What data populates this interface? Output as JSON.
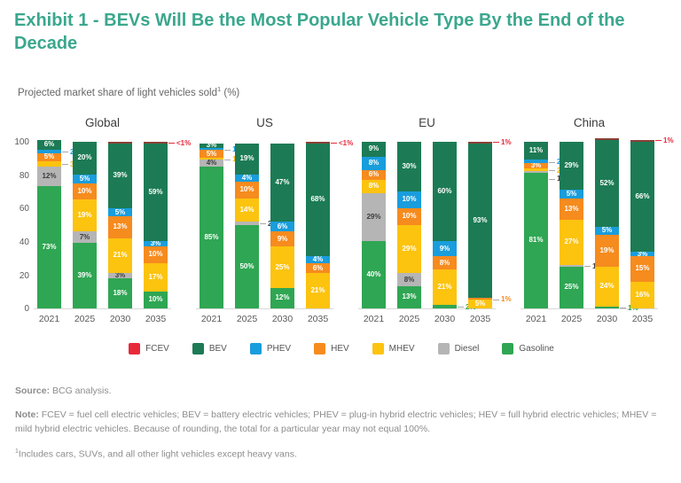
{
  "page": {
    "title": "Exhibit 1 - BEVs Will Be the Most Popular Vehicle Type By the End of the Decade",
    "subtitle_text": "Projected market share of light vehicles sold",
    "subtitle_sup": "1",
    "subtitle_suffix": " (%)"
  },
  "legend": [
    {
      "name": "FCEV",
      "color": "#e8293a",
      "callout_color": "#e8293a"
    },
    {
      "name": "BEV",
      "color": "#1c7b55",
      "callout_color": "#1c7b55"
    },
    {
      "name": "PHEV",
      "color": "#199ddc",
      "callout_color": "#199ddc"
    },
    {
      "name": "HEV",
      "color": "#f68b1e",
      "callout_color": "#f68b1e"
    },
    {
      "name": "MHEV",
      "color": "#fcc30f",
      "callout_color": "#f5b60d"
    },
    {
      "name": "Diesel",
      "color": "#b5b5b5",
      "callout_color": "#3d3d3d"
    },
    {
      "name": "Gasoline",
      "color": "#2fa653",
      "callout_color": "#2fa653"
    }
  ],
  "colors": {
    "fcev_sliver": "#8a4036",
    "diesel_inside_label": "#3d3d3d"
  },
  "chart_data": {
    "type": "bar",
    "stacked": true,
    "unit": "%",
    "ylim": [
      0,
      100
    ],
    "yticks": [
      0,
      20,
      40,
      60,
      80,
      100
    ],
    "grid": false,
    "legend_position": "bottom",
    "series_order_bottom_to_top": [
      "Gasoline",
      "Diesel",
      "MHEV",
      "HEV",
      "PHEV",
      "BEV",
      "FCEV"
    ],
    "charts": [
      {
        "title": "Global",
        "categories": [
          "2021",
          "2025",
          "2030",
          "2035"
        ],
        "bars": [
          {
            "year": "2021",
            "segments": [
              {
                "series": "Gasoline",
                "value": 73,
                "label": "73%",
                "label_pos": "inside"
              },
              {
                "series": "Diesel",
                "value": 12,
                "label": "12%",
                "label_pos": "inside"
              },
              {
                "series": "MHEV",
                "value": 3,
                "label": "3%",
                "label_pos": "right"
              },
              {
                "series": "HEV",
                "value": 5,
                "label": "5%",
                "label_pos": "inside"
              },
              {
                "series": "PHEV",
                "value": 2,
                "label": "2%",
                "label_pos": "right"
              },
              {
                "series": "BEV",
                "value": 6,
                "label": "6%",
                "label_pos": "inside"
              }
            ]
          },
          {
            "year": "2025",
            "segments": [
              {
                "series": "Gasoline",
                "value": 39,
                "label": "39%",
                "label_pos": "inside"
              },
              {
                "series": "Diesel",
                "value": 7,
                "label": "7%",
                "label_pos": "inside"
              },
              {
                "series": "MHEV",
                "value": 19,
                "label": "19%",
                "label_pos": "inside"
              },
              {
                "series": "HEV",
                "value": 10,
                "label": "10%",
                "label_pos": "inside"
              },
              {
                "series": "PHEV",
                "value": 5,
                "label": "5%",
                "label_pos": "inside"
              },
              {
                "series": "BEV",
                "value": 20,
                "label": "20%",
                "label_pos": "inside"
              }
            ]
          },
          {
            "year": "2030",
            "segments": [
              {
                "series": "Gasoline",
                "value": 18,
                "label": "18%",
                "label_pos": "inside"
              },
              {
                "series": "Diesel",
                "value": 3,
                "label": "3%",
                "label_pos": "inside"
              },
              {
                "series": "MHEV",
                "value": 21,
                "label": "21%",
                "label_pos": "inside"
              },
              {
                "series": "HEV",
                "value": 13,
                "label": "13%",
                "label_pos": "inside"
              },
              {
                "series": "PHEV",
                "value": 5,
                "label": "5%",
                "label_pos": "inside"
              },
              {
                "series": "BEV",
                "value": 39,
                "label": "39%",
                "label_pos": "inside"
              },
              {
                "series": "FCEV",
                "value": 0.5,
                "label": "",
                "label_pos": "none"
              }
            ]
          },
          {
            "year": "2035",
            "segments": [
              {
                "series": "Gasoline",
                "value": 10,
                "label": "10%",
                "label_pos": "inside"
              },
              {
                "series": "MHEV",
                "value": 17,
                "label": "17%",
                "label_pos": "inside"
              },
              {
                "series": "HEV",
                "value": 10,
                "label": "10%",
                "label_pos": "inside"
              },
              {
                "series": "PHEV",
                "value": 3,
                "label": "3%",
                "label_pos": "inside"
              },
              {
                "series": "BEV",
                "value": 59,
                "label": "59%",
                "label_pos": "inside"
              },
              {
                "series": "FCEV",
                "value": 0.5,
                "label": "<1%",
                "label_pos": "top"
              }
            ]
          }
        ]
      },
      {
        "title": "US",
        "categories": [
          "2021",
          "2025",
          "2030",
          "2035"
        ],
        "bars": [
          {
            "year": "2021",
            "segments": [
              {
                "series": "Gasoline",
                "value": 85,
                "label": "85%",
                "label_pos": "inside"
              },
              {
                "series": "Diesel",
                "value": 4,
                "label": "4%",
                "label_pos": "inside"
              },
              {
                "series": "MHEV",
                "value": 1,
                "label": "1%",
                "label_pos": "right"
              },
              {
                "series": "HEV",
                "value": 5,
                "label": "5%",
                "label_pos": "inside"
              },
              {
                "series": "PHEV",
                "value": 1,
                "label": "1%",
                "label_pos": "right"
              },
              {
                "series": "BEV",
                "value": 3,
                "label": "3%",
                "label_pos": "inside"
              }
            ]
          },
          {
            "year": "2025",
            "segments": [
              {
                "series": "Gasoline",
                "value": 50,
                "label": "50%",
                "label_pos": "inside"
              },
              {
                "series": "Diesel",
                "value": 2,
                "label": "2%",
                "label_pos": "right"
              },
              {
                "series": "MHEV",
                "value": 14,
                "label": "14%",
                "label_pos": "inside"
              },
              {
                "series": "HEV",
                "value": 10,
                "label": "10%",
                "label_pos": "inside"
              },
              {
                "series": "PHEV",
                "value": 4,
                "label": "4%",
                "label_pos": "inside"
              },
              {
                "series": "BEV",
                "value": 19,
                "label": "19%",
                "label_pos": "inside"
              }
            ]
          },
          {
            "year": "2030",
            "segments": [
              {
                "series": "Gasoline",
                "value": 12,
                "label": "12%",
                "label_pos": "inside"
              },
              {
                "series": "MHEV",
                "value": 25,
                "label": "25%",
                "label_pos": "inside"
              },
              {
                "series": "HEV",
                "value": 9,
                "label": "9%",
                "label_pos": "inside"
              },
              {
                "series": "PHEV",
                "value": 6,
                "label": "6%",
                "label_pos": "inside"
              },
              {
                "series": "BEV",
                "value": 47,
                "label": "47%",
                "label_pos": "inside"
              }
            ]
          },
          {
            "year": "2035",
            "segments": [
              {
                "series": "MHEV",
                "value": 21,
                "label": "21%",
                "label_pos": "inside"
              },
              {
                "series": "HEV",
                "value": 6,
                "label": "6%",
                "label_pos": "inside"
              },
              {
                "series": "PHEV",
                "value": 4,
                "label": "4%",
                "label_pos": "inside"
              },
              {
                "series": "BEV",
                "value": 68,
                "label": "68%",
                "label_pos": "inside"
              },
              {
                "series": "FCEV",
                "value": 0.5,
                "label": "<1%",
                "label_pos": "top"
              }
            ]
          }
        ]
      },
      {
        "title": "EU",
        "categories": [
          "2021",
          "2025",
          "2030",
          "2035"
        ],
        "bars": [
          {
            "year": "2021",
            "segments": [
              {
                "series": "Gasoline",
                "value": 40,
                "label": "40%",
                "label_pos": "inside"
              },
              {
                "series": "Diesel",
                "value": 29,
                "label": "29%",
                "label_pos": "inside"
              },
              {
                "series": "MHEV",
                "value": 8,
                "label": "8%",
                "label_pos": "inside"
              },
              {
                "series": "HEV",
                "value": 6,
                "label": "6%",
                "label_pos": "inside"
              },
              {
                "series": "PHEV",
                "value": 8,
                "label": "8%",
                "label_pos": "inside"
              },
              {
                "series": "BEV",
                "value": 9,
                "label": "9%",
                "label_pos": "inside"
              }
            ]
          },
          {
            "year": "2025",
            "segments": [
              {
                "series": "Gasoline",
                "value": 13,
                "label": "13%",
                "label_pos": "inside"
              },
              {
                "series": "Diesel",
                "value": 8,
                "label": "8%",
                "label_pos": "inside"
              },
              {
                "series": "MHEV",
                "value": 29,
                "label": "29%",
                "label_pos": "inside"
              },
              {
                "series": "HEV",
                "value": 10,
                "label": "10%",
                "label_pos": "inside"
              },
              {
                "series": "PHEV",
                "value": 10,
                "label": "10%",
                "label_pos": "inside"
              },
              {
                "series": "BEV",
                "value": 30,
                "label": "30%",
                "label_pos": "inside"
              }
            ]
          },
          {
            "year": "2030",
            "segments": [
              {
                "series": "Gasoline",
                "value": 2,
                "label": "2%",
                "label_pos": "right"
              },
              {
                "series": "MHEV",
                "value": 21,
                "label": "21%",
                "label_pos": "inside"
              },
              {
                "series": "HEV",
                "value": 8,
                "label": "8%",
                "label_pos": "inside"
              },
              {
                "series": "PHEV",
                "value": 9,
                "label": "9%",
                "label_pos": "inside"
              },
              {
                "series": "BEV",
                "value": 60,
                "label": "60%",
                "label_pos": "inside"
              }
            ]
          },
          {
            "year": "2035",
            "segments": [
              {
                "series": "MHEV",
                "value": 5,
                "label": "5%",
                "label_pos": "inside"
              },
              {
                "series": "HEV",
                "value": 1,
                "label": "1%",
                "label_pos": "right"
              },
              {
                "series": "BEV",
                "value": 93,
                "label": "93%",
                "label_pos": "inside"
              },
              {
                "series": "FCEV",
                "value": 1,
                "label": "1%",
                "label_pos": "top"
              }
            ]
          }
        ]
      },
      {
        "title": "China",
        "categories": [
          "2021",
          "2025",
          "2030",
          "2035"
        ],
        "bars": [
          {
            "year": "2021",
            "segments": [
              {
                "series": "Gasoline",
                "value": 81,
                "label": "81%",
                "label_pos": "inside"
              },
              {
                "series": "Diesel",
                "value": 1,
                "label": "1%",
                "label_pos": "right"
              },
              {
                "series": "MHEV",
                "value": 2,
                "label": "2%",
                "label_pos": "right"
              },
              {
                "series": "HEV",
                "value": 3,
                "label": "3%",
                "label_pos": "inside"
              },
              {
                "series": "PHEV",
                "value": 2,
                "label": "2%",
                "label_pos": "right"
              },
              {
                "series": "BEV",
                "value": 11,
                "label": "11%",
                "label_pos": "inside"
              }
            ]
          },
          {
            "year": "2025",
            "segments": [
              {
                "series": "Gasoline",
                "value": 25,
                "label": "25%",
                "label_pos": "inside"
              },
              {
                "series": "Diesel",
                "value": 1,
                "label": "1%",
                "label_pos": "right"
              },
              {
                "series": "MHEV",
                "value": 27,
                "label": "27%",
                "label_pos": "inside"
              },
              {
                "series": "HEV",
                "value": 13,
                "label": "13%",
                "label_pos": "inside"
              },
              {
                "series": "PHEV",
                "value": 5,
                "label": "5%",
                "label_pos": "inside"
              },
              {
                "series": "BEV",
                "value": 29,
                "label": "29%",
                "label_pos": "inside"
              }
            ]
          },
          {
            "year": "2030",
            "segments": [
              {
                "series": "Gasoline",
                "value": 1,
                "label": "1%",
                "label_pos": "right"
              },
              {
                "series": "MHEV",
                "value": 24,
                "label": "24%",
                "label_pos": "inside"
              },
              {
                "series": "HEV",
                "value": 19,
                "label": "19%",
                "label_pos": "inside"
              },
              {
                "series": "PHEV",
                "value": 5,
                "label": "5%",
                "label_pos": "inside"
              },
              {
                "series": "BEV",
                "value": 52,
                "label": "52%",
                "label_pos": "inside"
              },
              {
                "series": "FCEV",
                "value": 0.5,
                "label": "",
                "label_pos": "none"
              }
            ]
          },
          {
            "year": "2035",
            "segments": [
              {
                "series": "MHEV",
                "value": 16,
                "label": "16%",
                "label_pos": "inside"
              },
              {
                "series": "HEV",
                "value": 15,
                "label": "15%",
                "label_pos": "inside"
              },
              {
                "series": "PHEV",
                "value": 3,
                "label": "3%",
                "label_pos": "inside"
              },
              {
                "series": "BEV",
                "value": 66,
                "label": "66%",
                "label_pos": "inside"
              },
              {
                "series": "FCEV",
                "value": 1,
                "label": "1%",
                "label_pos": "top"
              }
            ]
          }
        ]
      }
    ]
  },
  "footer": {
    "source_label": "Source:",
    "source_text": " BCG analysis.",
    "note_label": "Note:",
    "note_text": " FCEV = fuel cell electric vehicles; BEV = battery electric vehicles; PHEV = plug-in hybrid electric vehicles; HEV = full hybrid electric vehicles; MHEV = mild hybrid electric vehicles. Because of rounding, the total for a particular year may not equal 100%.",
    "footnote_sup": "1",
    "footnote_text": "Includes cars, SUVs, and all other light vehicles except heavy vans."
  }
}
